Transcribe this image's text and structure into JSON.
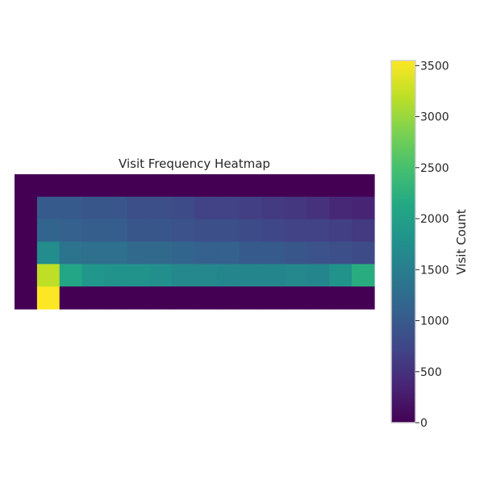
{
  "chart_data": {
    "type": "heatmap",
    "title": "Visit Frequency Heatmap",
    "xlabel": "",
    "ylabel": "",
    "colorbar": {
      "label": "Visit Count",
      "ticks": [
        0,
        500,
        1000,
        1500,
        2000,
        2500,
        3000,
        3500
      ],
      "range": [
        0,
        3550
      ],
      "colormap": "viridis"
    },
    "rows": 6,
    "cols": 16,
    "values": [
      [
        0,
        0,
        0,
        0,
        0,
        0,
        0,
        0,
        0,
        0,
        0,
        0,
        0,
        0,
        0,
        0
      ],
      [
        0,
        1000,
        1000,
        950,
        950,
        850,
        850,
        800,
        700,
        700,
        650,
        600,
        550,
        500,
        400,
        350
      ],
      [
        0,
        1150,
        1100,
        1050,
        1050,
        950,
        950,
        900,
        850,
        850,
        800,
        750,
        700,
        700,
        650,
        600
      ],
      [
        0,
        1700,
        1350,
        1300,
        1300,
        1200,
        1200,
        1150,
        1100,
        1100,
        1000,
        1000,
        950,
        900,
        850,
        800
      ],
      [
        0,
        3200,
        2100,
        1850,
        1800,
        1800,
        1750,
        1650,
        1650,
        1600,
        1600,
        1600,
        1650,
        1600,
        1800,
        2200
      ],
      [
        0,
        3550,
        0,
        0,
        0,
        0,
        0,
        0,
        0,
        0,
        0,
        0,
        0,
        0,
        0,
        0
      ]
    ]
  }
}
